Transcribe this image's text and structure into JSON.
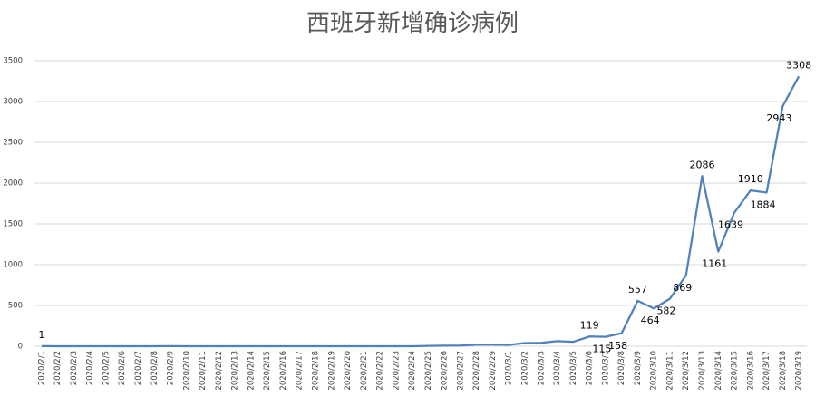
{
  "chart_data": {
    "type": "line",
    "title": "西班牙新增确诊病例",
    "categories": [
      "2020/2/1",
      "2020/2/2",
      "2020/2/3",
      "2020/2/4",
      "2020/2/5",
      "2020/2/6",
      "2020/2/7",
      "2020/2/8",
      "2020/2/9",
      "2020/2/10",
      "2020/2/11",
      "2020/2/12",
      "2020/2/13",
      "2020/2/14",
      "2020/2/15",
      "2020/2/16",
      "2020/2/17",
      "2020/2/18",
      "2020/2/19",
      "2020/2/20",
      "2020/2/21",
      "2020/2/22",
      "2020/2/23",
      "2020/2/24",
      "2020/2/25",
      "2020/2/26",
      "2020/2/27",
      "2020/2/28",
      "2020/2/29",
      "2020/3/1",
      "2020/3/2",
      "2020/3/3",
      "2020/3/4",
      "2020/3/5",
      "2020/3/6",
      "2020/3/7",
      "2020/3/8",
      "2020/3/9",
      "2020/3/10",
      "2020/3/11",
      "2020/3/12",
      "2020/3/13",
      "2020/3/14",
      "2020/3/15",
      "2020/3/16",
      "2020/3/17",
      "2020/3/18",
      "2020/3/19"
    ],
    "values": [
      1,
      0,
      0,
      0,
      0,
      0,
      0,
      0,
      1,
      0,
      0,
      0,
      0,
      0,
      0,
      0,
      0,
      0,
      0,
      0,
      0,
      0,
      0,
      0,
      4,
      7,
      8,
      20,
      19,
      17,
      39,
      42,
      63,
      54,
      119,
      115,
      158,
      557,
      464,
      582,
      869,
      2086,
      1161,
      1639,
      1910,
      1884,
      2943,
      3308
    ],
    "value_labels": [
      "1",
      null,
      null,
      null,
      null,
      null,
      null,
      null,
      null,
      null,
      null,
      null,
      null,
      null,
      null,
      null,
      null,
      null,
      null,
      null,
      null,
      null,
      null,
      null,
      null,
      null,
      null,
      null,
      null,
      null,
      null,
      null,
      null,
      null,
      "119",
      "115",
      "158",
      "557",
      "464",
      "582",
      "869",
      "2086",
      "1161",
      "1639",
      "1910",
      "1884",
      "2943",
      "3308"
    ],
    "color": "#4f81bd",
    "ylim": [
      0,
      3500
    ],
    "yticks": [
      0,
      500,
      1000,
      1500,
      2000,
      2500,
      3000,
      3500
    ],
    "grid": true
  }
}
